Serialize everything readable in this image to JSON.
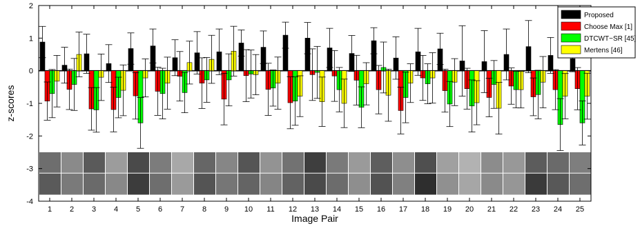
{
  "chart_data": {
    "type": "bar",
    "xlabel": "Image Pair",
    "ylabel": "z-scores",
    "ylim": [
      -4,
      2
    ],
    "yticks": [
      -4,
      -3,
      -2,
      -1,
      0,
      1,
      2
    ],
    "categories": [
      "1",
      "2",
      "3",
      "4",
      "5",
      "6",
      "7",
      "8",
      "9",
      "10",
      "11",
      "12",
      "13",
      "14",
      "15",
      "16",
      "17",
      "18",
      "19",
      "20",
      "21",
      "22",
      "23",
      "24",
      "25"
    ],
    "error_bars": true,
    "legend_position": "top-right",
    "thumbnail_strip": true,
    "series": [
      {
        "name": "Proposed",
        "color": "#000000",
        "values": [
          0.88,
          0.17,
          0.52,
          0.22,
          0.68,
          0.76,
          0.4,
          0.55,
          0.58,
          0.85,
          0.72,
          1.09,
          1.0,
          0.7,
          0.53,
          0.92,
          0.39,
          0.58,
          0.67,
          0.3,
          0.28,
          0.5,
          0.74,
          0.47,
          0.37
        ],
        "errors": [
          0.48,
          0.55,
          0.6,
          0.58,
          0.48,
          0.52,
          0.55,
          0.65,
          0.7,
          0.4,
          0.5,
          0.4,
          0.48,
          0.6,
          0.55,
          0.4,
          0.65,
          0.72,
          0.48,
          1.08,
          0.95,
          0.78,
          0.8,
          0.55,
          0.4
        ]
      },
      {
        "name": "Choose Max [1]",
        "color": "#ff0000",
        "values": [
          -0.93,
          -0.57,
          -1.17,
          -1.19,
          -0.77,
          -0.63,
          -0.17,
          -0.38,
          -0.87,
          -0.15,
          -0.57,
          -0.98,
          -0.12,
          -0.16,
          -0.29,
          -0.58,
          -1.22,
          -0.22,
          -0.61,
          -0.55,
          -0.82,
          -0.47,
          -0.8,
          -0.58,
          -0.55
        ]
      },
      {
        "name": "DTCWT−SR [45]",
        "color": "#00ff00",
        "values": [
          -0.7,
          -0.42,
          -1.2,
          -0.82,
          -1.6,
          -0.7,
          -0.67,
          -0.28,
          -0.28,
          -0.1,
          -0.53,
          -0.93,
          -0.05,
          -0.58,
          -1.12,
          0.1,
          -0.82,
          -0.4,
          -1.02,
          -1.08,
          -0.42,
          -0.58,
          -0.73,
          -1.65,
          -1.6
        ]
      },
      {
        "name": "Mertens [46]",
        "color": "#ffff00",
        "values": [
          -0.32,
          0.5,
          -0.2,
          -0.6,
          -0.22,
          -0.38,
          0.25,
          0.35,
          0.6,
          -0.12,
          -0.38,
          -0.78,
          -0.95,
          -1.0,
          -0.4,
          -0.75,
          -0.38,
          -0.22,
          -0.35,
          -0.98,
          -1.15,
          -0.58,
          -0.35,
          -0.78,
          -0.78
        ]
      }
    ]
  }
}
